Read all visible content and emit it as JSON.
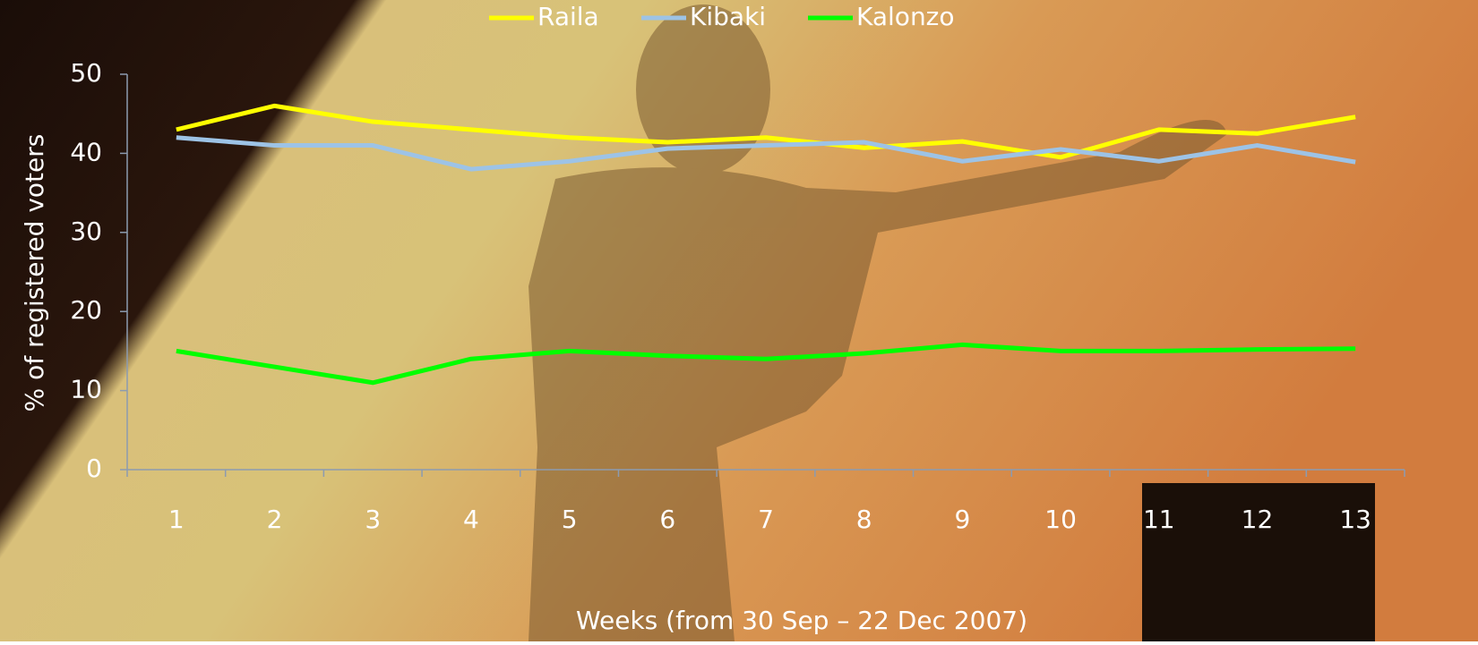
{
  "chart_data": {
    "type": "line",
    "x_label": "Weeks (from 30 Sep – 22 Dec 2007)",
    "y_label": "% of registered voters",
    "categories": [
      "1",
      "2",
      "3",
      "4",
      "5",
      "6",
      "7",
      "8",
      "9",
      "10",
      "11",
      "12",
      "13"
    ],
    "series": [
      {
        "name": "Raila",
        "color": "#ffff00",
        "values": [
          43,
          46,
          44,
          43,
          42,
          41.4,
          42,
          40.7,
          41.5,
          39.5,
          43,
          42.5,
          44.6
        ]
      },
      {
        "name": "Kibaki",
        "color": "#9dc3e6",
        "values": [
          42,
          41,
          41,
          38,
          39,
          40.6,
          41,
          41.4,
          39,
          40.5,
          39,
          41,
          38.9
        ]
      },
      {
        "name": "Kalonzo",
        "color": "#00ff00",
        "values": [
          15,
          13,
          11,
          14,
          15,
          14.4,
          14,
          14.7,
          15.8,
          15,
          15,
          15.2,
          15.3
        ]
      }
    ],
    "ylim": [
      0,
      50
    ],
    "yticks": [
      0,
      10,
      20,
      30,
      40,
      50
    ],
    "grid": false,
    "legend": "top"
  }
}
